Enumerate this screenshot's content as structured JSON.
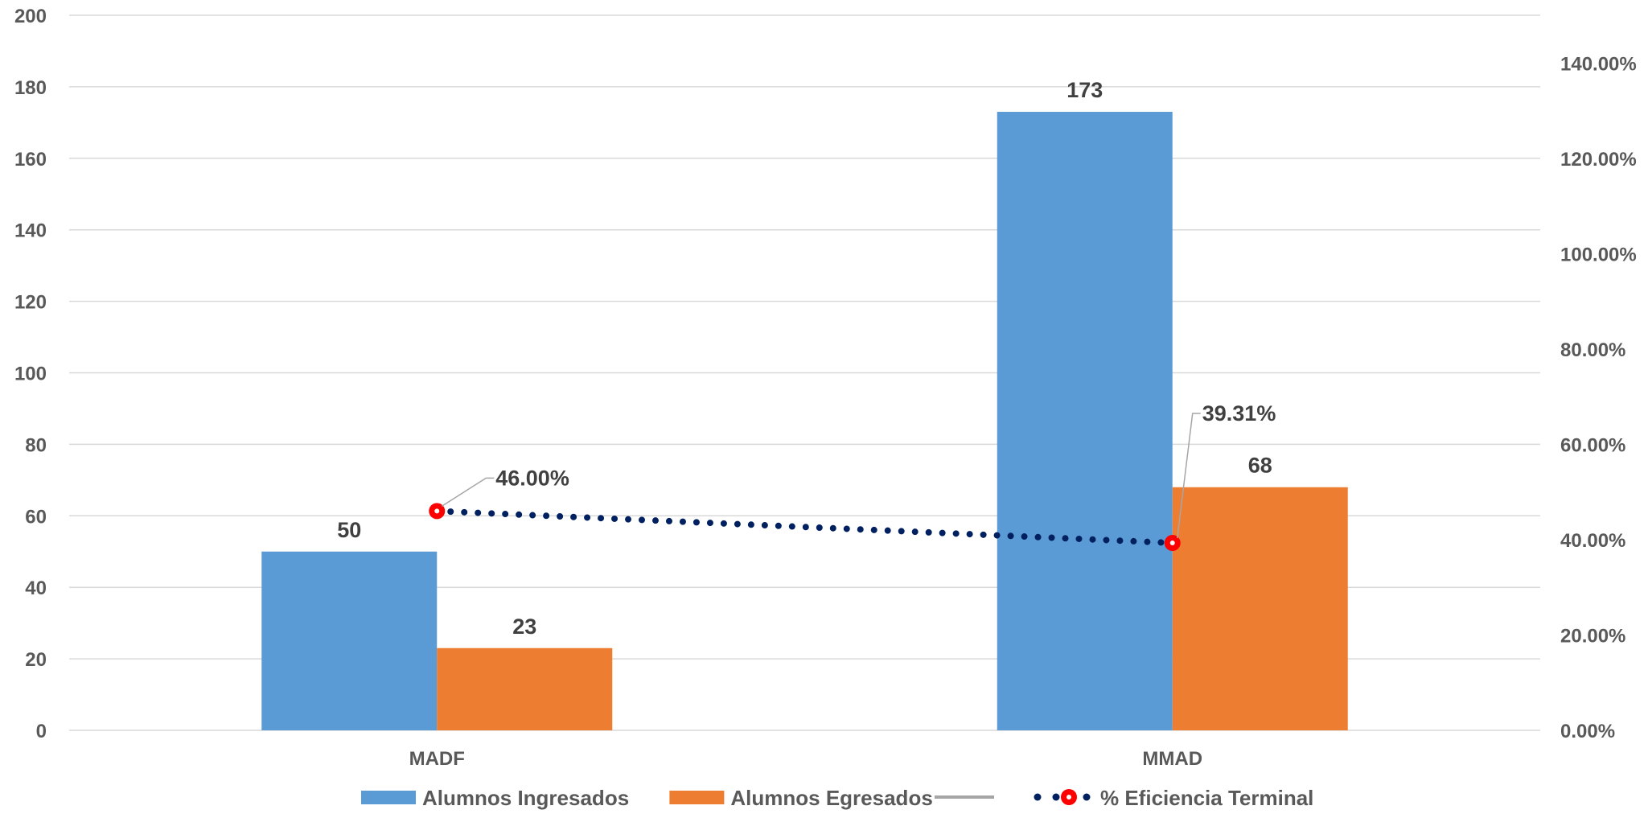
{
  "chart_data": {
    "type": "bar",
    "categories": [
      "MADF",
      "MMAD"
    ],
    "series": [
      {
        "name": "Alumnos Ingresados",
        "values": [
          50,
          173
        ],
        "color": "#5b9bd5",
        "axis": "left"
      },
      {
        "name": "Alumnos Egresados",
        "values": [
          23,
          68
        ],
        "color": "#ed7d31",
        "axis": "left"
      },
      {
        "name": "% Eficiencia Terminal",
        "type": "line",
        "values": [
          46.0,
          39.31
        ],
        "labels": [
          "46.00%",
          "39.31%"
        ],
        "color": "#002060",
        "marker_color": "#ff0000",
        "axis": "right"
      }
    ],
    "legend_extra": {
      "name": "",
      "color": "#a5a5a5"
    },
    "ylim": [
      0,
      200
    ],
    "yticks": [
      0,
      20,
      40,
      60,
      80,
      100,
      120,
      140,
      160,
      180,
      200
    ],
    "y2lim": [
      0,
      150
    ],
    "y2ticks": [
      "0.00%",
      "20.00%",
      "40.00%",
      "60.00%",
      "80.00%",
      "100.00%",
      "120.00%",
      "140.00%"
    ],
    "y2tick_values": [
      0,
      20,
      40,
      60,
      80,
      100,
      120,
      140
    ],
    "grid": true,
    "legend_position": "bottom",
    "title": "",
    "xlabel": "",
    "ylabel": ""
  }
}
